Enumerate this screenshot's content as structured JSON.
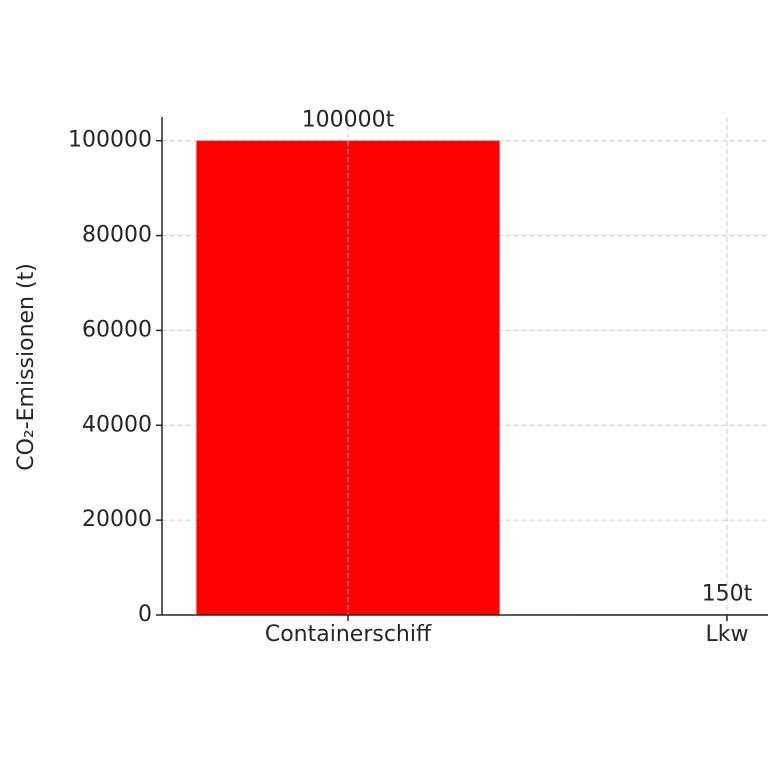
{
  "chart_data": {
    "type": "bar",
    "y_label": "CO₂-Emissionen (t)",
    "categories": [
      "Containerschiff",
      "Lkw"
    ],
    "values": [
      100000,
      150
    ],
    "value_labels": [
      "100000t",
      "150t"
    ],
    "colors": [
      "#ff0000",
      "#1f77b4"
    ],
    "ylim": [
      0,
      105000
    ],
    "yticks": [
      0,
      20000,
      40000,
      60000,
      80000,
      100000
    ],
    "grid": true
  }
}
